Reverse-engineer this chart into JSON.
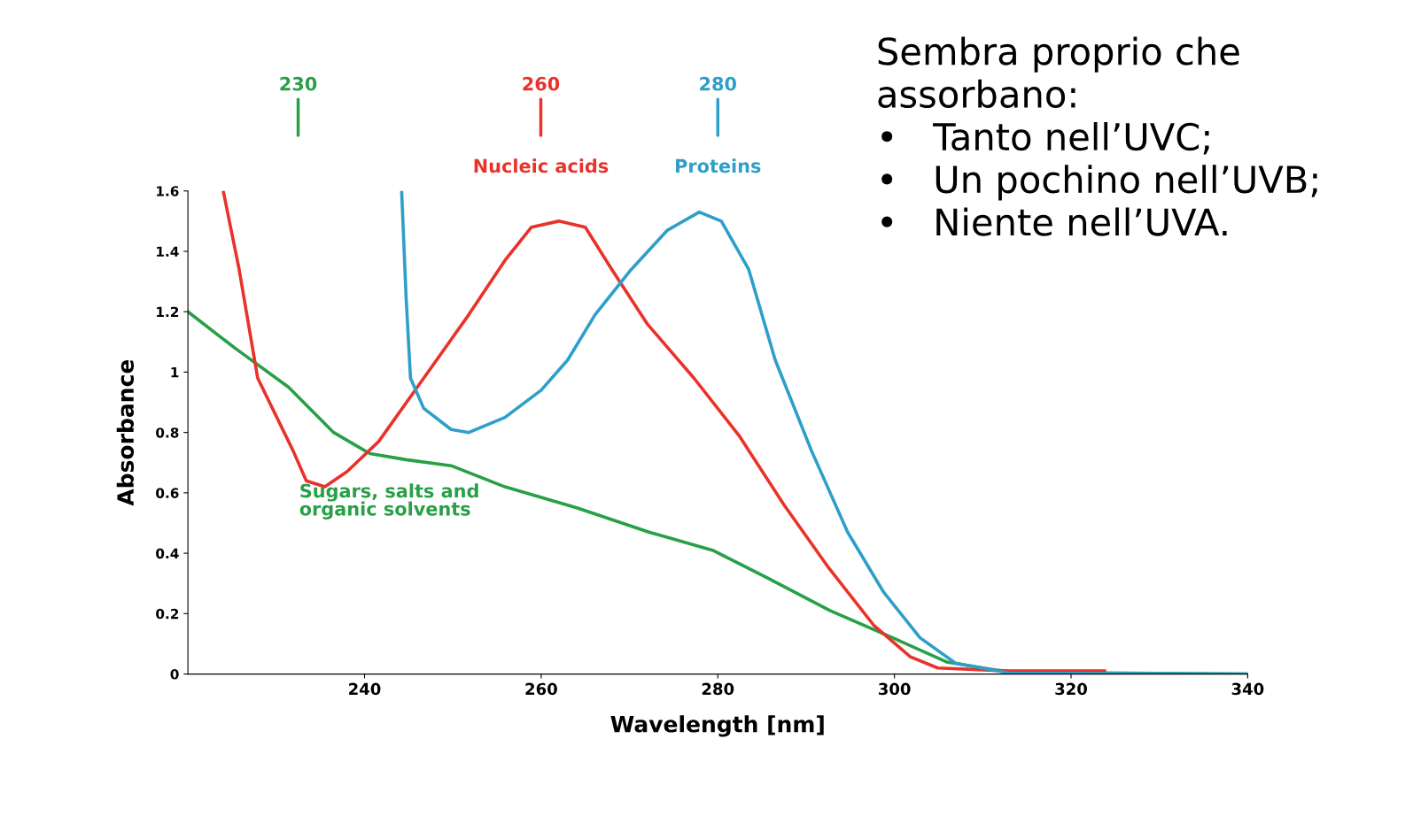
{
  "chart_data": {
    "type": "line",
    "xlabel": "Wavelength [nm]",
    "ylabel": "Absorbance",
    "xlim": [
      220,
      340
    ],
    "xticks": [
      240,
      260,
      280,
      300,
      320,
      340
    ],
    "ylim": [
      0,
      1.6
    ],
    "yticks": [
      0,
      0.2,
      0.4,
      0.6,
      0.8,
      1,
      1.2,
      1.4,
      1.6
    ],
    "grid": false,
    "legend": false,
    "marker": "none",
    "line_style": "solid",
    "series": [
      {
        "name": "Sugars, salts and organic solvents",
        "color": "#27a046",
        "x": [
          220,
          225.3,
          231.4,
          236.5,
          240.6,
          244.7,
          249.8,
          255.9,
          264.1,
          272.2,
          279.4,
          285.5,
          292.7,
          299.8,
          305.9,
          313,
          340
        ],
        "values": [
          1.2,
          1.08,
          0.95,
          0.8,
          0.73,
          0.71,
          0.69,
          0.62,
          0.55,
          0.47,
          0.41,
          0.32,
          0.21,
          0.12,
          0.04,
          0.006,
          0
        ]
      },
      {
        "name": "Nucleic acids",
        "color": "#e8322a",
        "x": [
          224,
          225.8,
          227.9,
          231.9,
          233.4,
          235.5,
          238,
          241.6,
          246.7,
          251.8,
          255.9,
          258.9,
          262,
          265,
          268,
          272,
          277.3,
          282.4,
          287.5,
          292.6,
          297.7,
          301.8,
          304.9,
          313,
          323.8
        ],
        "values": [
          1.6,
          1.34,
          0.98,
          0.74,
          0.64,
          0.62,
          0.67,
          0.77,
          0.98,
          1.19,
          1.37,
          1.48,
          1.5,
          1.48,
          1.34,
          1.16,
          0.98,
          0.79,
          0.56,
          0.35,
          0.16,
          0.057,
          0.02,
          0.01,
          0.01
        ]
      },
      {
        "name": "Proteins",
        "color": "#2e9fc9",
        "x": [
          244.2,
          244.7,
          245.2,
          246.7,
          249.8,
          251.8,
          255.9,
          260,
          263,
          266.1,
          270.2,
          274.3,
          277.9,
          280.4,
          283.5,
          286.5,
          290.6,
          294.7,
          298.8,
          302.9,
          306.9,
          313,
          340
        ],
        "values": [
          1.6,
          1.25,
          0.98,
          0.88,
          0.81,
          0.8,
          0.85,
          0.94,
          1.04,
          1.19,
          1.34,
          1.47,
          1.53,
          1.5,
          1.34,
          1.04,
          0.74,
          0.47,
          0.27,
          0.12,
          0.036,
          0.003,
          0
        ]
      }
    ],
    "annotations": [
      "230",
      "260",
      "280",
      "Sembra proprio che\nassorbano:\n•   Tanto nell’UVC;\n•   Un pochino nell’UVB;\n•   Niente nell’UVA."
    ]
  }
}
